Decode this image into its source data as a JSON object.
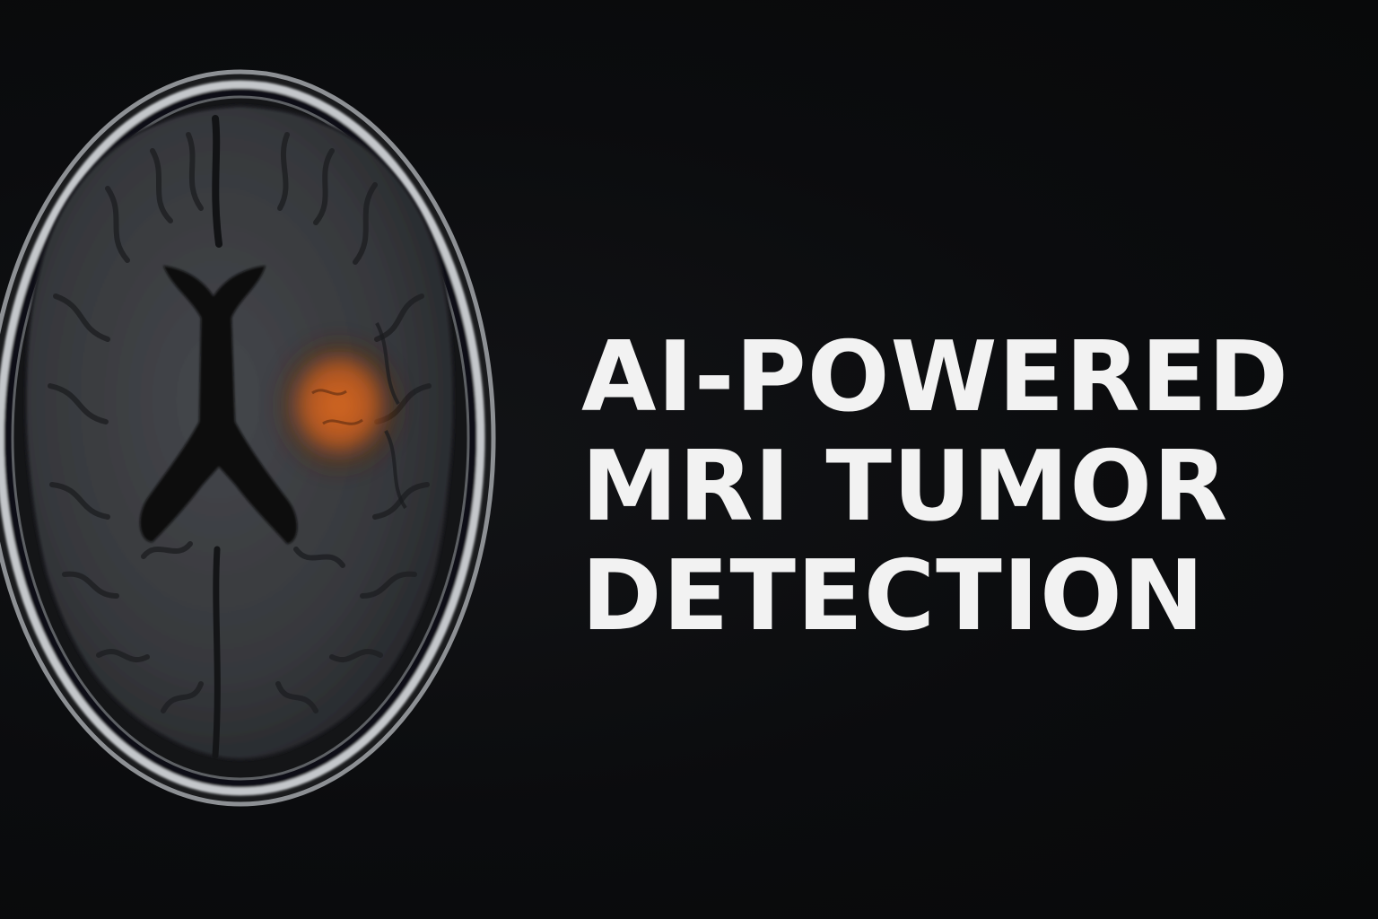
{
  "headline": {
    "line1": "AI-POWERED",
    "line2": "MRI TUMOR",
    "line3": "DETECTION"
  },
  "image": {
    "subject": "axial brain MRI slice",
    "highlight_color": "#d2621e",
    "tissue_color": "#3a3c40",
    "skull_color": "#b9bcc0"
  }
}
